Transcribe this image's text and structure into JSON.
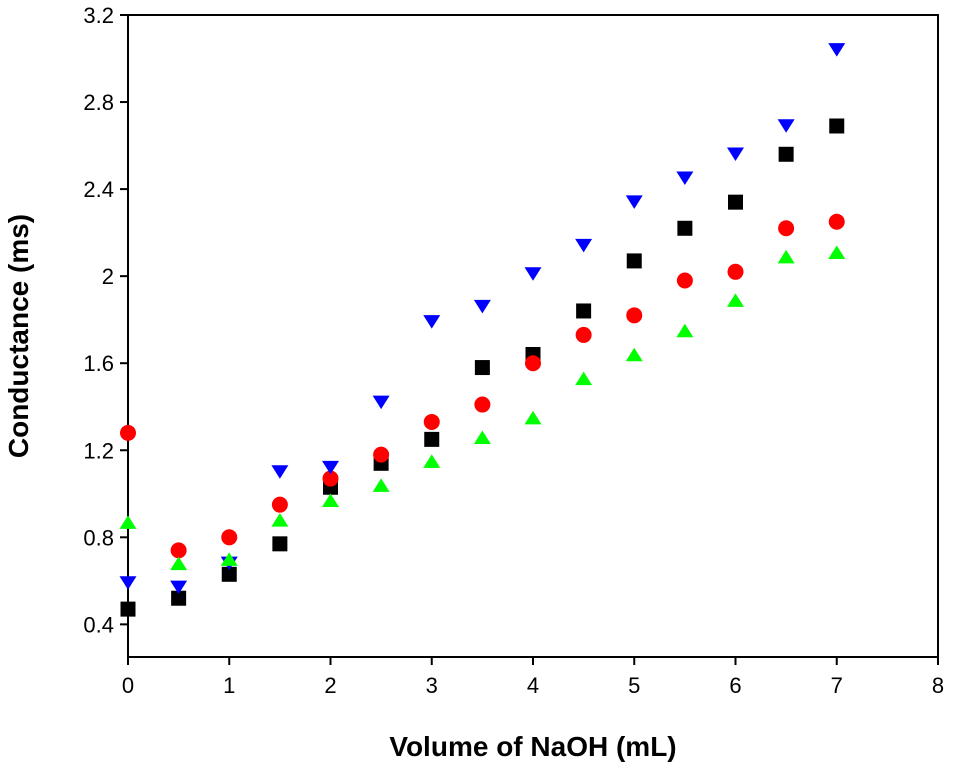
{
  "chart_data": {
    "type": "scatter",
    "title": "",
    "xlabel": "Volume of NaOH (mL)",
    "ylabel": "Conductance (ms)",
    "xlim": [
      0,
      8
    ],
    "ylim": [
      0.25,
      3.2
    ],
    "xticks": [
      0,
      1,
      2,
      3,
      4,
      5,
      6,
      7,
      8
    ],
    "yticks": [
      0.4,
      0.8,
      1.2,
      1.6,
      2.0,
      2.4,
      2.8,
      3.2
    ],
    "grid": false,
    "legend": "none",
    "series": [
      {
        "name": "black squares",
        "marker": "square",
        "color": "#000000",
        "x": [
          0,
          0.5,
          1,
          1.5,
          2,
          2.5,
          3,
          3.5,
          4,
          4.5,
          5,
          5.5,
          6,
          6.5,
          7
        ],
        "y": [
          0.47,
          0.52,
          0.63,
          0.77,
          1.03,
          1.14,
          1.25,
          1.58,
          1.64,
          1.84,
          2.07,
          2.22,
          2.34,
          2.56,
          2.69
        ]
      },
      {
        "name": "red circles",
        "marker": "circle",
        "color": "#ff0000",
        "x": [
          0,
          0.5,
          1,
          1.5,
          2,
          2.5,
          3,
          3.5,
          4,
          4.5,
          5,
          5.5,
          6,
          6.5,
          7
        ],
        "y": [
          1.28,
          0.74,
          0.8,
          0.95,
          1.07,
          1.18,
          1.33,
          1.41,
          1.6,
          1.73,
          1.82,
          1.98,
          2.02,
          2.22,
          2.25
        ]
      },
      {
        "name": "blue down triangles",
        "marker": "triangle-down",
        "color": "#0000ff",
        "x": [
          0,
          0.5,
          1,
          1.5,
          2,
          2.5,
          3,
          3.5,
          4,
          4.5,
          5,
          5.5,
          6,
          6.5,
          7
        ],
        "y": [
          0.59,
          0.57,
          0.68,
          1.1,
          1.12,
          1.42,
          1.79,
          1.86,
          2.01,
          2.14,
          2.34,
          2.45,
          2.56,
          2.69,
          3.04
        ]
      },
      {
        "name": "green up triangles",
        "marker": "triangle-up",
        "color": "#00ff00",
        "x": [
          0,
          0.5,
          1,
          1.5,
          2,
          2.5,
          3,
          3.5,
          4,
          4.5,
          5,
          5.5,
          6,
          6.5,
          7
        ],
        "y": [
          0.87,
          0.68,
          0.7,
          0.88,
          0.97,
          1.04,
          1.15,
          1.26,
          1.35,
          1.53,
          1.64,
          1.75,
          1.89,
          2.09,
          2.11
        ]
      }
    ]
  }
}
